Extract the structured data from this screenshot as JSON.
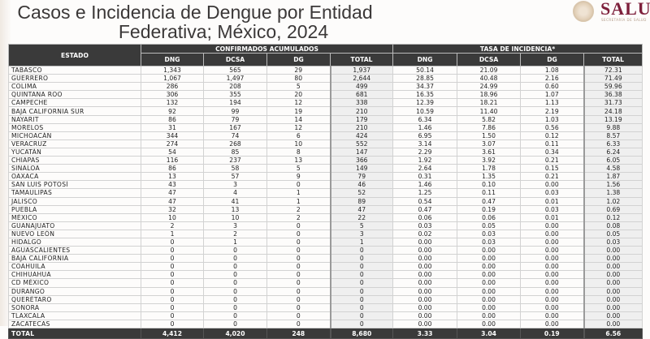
{
  "title": {
    "line1": "Casos e Incidencia de Dengue por Entidad",
    "line2": "Federativa; México, 2024"
  },
  "logo": {
    "text": "SALUD",
    "subtitle": "SECRETARÍA DE SALUD",
    "color": "#7d1f3b"
  },
  "table": {
    "estado_header": "ESTADO",
    "group1": "CONFIRMADOS ACUMULADOS",
    "group2": "TASA DE INCIDENCIA*",
    "columns": [
      "DNG",
      "DCSA",
      "DG",
      "TOTAL",
      "DNG",
      "DCSA",
      "DG",
      "TOTAL"
    ],
    "rows": [
      [
        "TABASCO",
        "1,343",
        "565",
        "29",
        "1,937",
        "50.14",
        "21.09",
        "1.08",
        "72.31"
      ],
      [
        "GUERRERO",
        "1,067",
        "1,497",
        "80",
        "2,644",
        "28.85",
        "40.48",
        "2.16",
        "71.49"
      ],
      [
        "COLIMA",
        "286",
        "208",
        "5",
        "499",
        "34.37",
        "24.99",
        "0.60",
        "59.96"
      ],
      [
        "QUINTANA ROO",
        "306",
        "355",
        "20",
        "681",
        "16.35",
        "18.96",
        "1.07",
        "36.38"
      ],
      [
        "CAMPECHE",
        "132",
        "194",
        "12",
        "338",
        "12.39",
        "18.21",
        "1.13",
        "31.73"
      ],
      [
        "BAJA CALIFORNIA SUR",
        "92",
        "99",
        "19",
        "210",
        "10.59",
        "11.40",
        "2.19",
        "24.18"
      ],
      [
        "NAYARIT",
        "86",
        "79",
        "14",
        "179",
        "6.34",
        "5.82",
        "1.03",
        "13.19"
      ],
      [
        "MORELOS",
        "31",
        "167",
        "12",
        "210",
        "1.46",
        "7.86",
        "0.56",
        "9.88"
      ],
      [
        "MICHOACÁN",
        "344",
        "74",
        "6",
        "424",
        "6.95",
        "1.50",
        "0.12",
        "8.57"
      ],
      [
        "VERACRUZ",
        "274",
        "268",
        "10",
        "552",
        "3.14",
        "3.07",
        "0.11",
        "6.33"
      ],
      [
        "YUCATÁN",
        "54",
        "85",
        "8",
        "147",
        "2.29",
        "3.61",
        "0.34",
        "6.24"
      ],
      [
        "CHIAPAS",
        "116",
        "237",
        "13",
        "366",
        "1.92",
        "3.92",
        "0.21",
        "6.05"
      ],
      [
        "SINALOA",
        "86",
        "58",
        "5",
        "149",
        "2.64",
        "1.78",
        "0.15",
        "4.58"
      ],
      [
        "OAXACA",
        "13",
        "57",
        "9",
        "79",
        "0.31",
        "1.35",
        "0.21",
        "1.87"
      ],
      [
        "SAN LUIS POTOSÍ",
        "43",
        "3",
        "0",
        "46",
        "1.46",
        "0.10",
        "0.00",
        "1.56"
      ],
      [
        "TAMAULIPAS",
        "47",
        "4",
        "1",
        "52",
        "1.25",
        "0.11",
        "0.03",
        "1.38"
      ],
      [
        "JALISCO",
        "47",
        "41",
        "1",
        "89",
        "0.54",
        "0.47",
        "0.01",
        "1.02"
      ],
      [
        "PUEBLA",
        "32",
        "13",
        "2",
        "47",
        "0.47",
        "0.19",
        "0.03",
        "0.69"
      ],
      [
        "MÉXICO",
        "10",
        "10",
        "2",
        "22",
        "0.06",
        "0.06",
        "0.01",
        "0.12"
      ],
      [
        "GUANAJUATO",
        "2",
        "3",
        "0",
        "5",
        "0.03",
        "0.05",
        "0.00",
        "0.08"
      ],
      [
        "NUEVO LEÓN",
        "1",
        "2",
        "0",
        "3",
        "0.02",
        "0.03",
        "0.00",
        "0.05"
      ],
      [
        "HIDALGO",
        "0",
        "1",
        "0",
        "1",
        "0.00",
        "0.03",
        "0.00",
        "0.03"
      ],
      [
        "AGUASCALIENTES",
        "0",
        "0",
        "0",
        "0",
        "0.00",
        "0.00",
        "0.00",
        "0.00"
      ],
      [
        "BAJA CALIFORNIA",
        "0",
        "0",
        "0",
        "0",
        "0.00",
        "0.00",
        "0.00",
        "0.00"
      ],
      [
        "COAHUILA",
        "0",
        "0",
        "0",
        "0",
        "0.00",
        "0.00",
        "0.00",
        "0.00"
      ],
      [
        "CHIHUAHUA",
        "0",
        "0",
        "0",
        "0",
        "0.00",
        "0.00",
        "0.00",
        "0.00"
      ],
      [
        "CD MÉXICO",
        "0",
        "0",
        "0",
        "0",
        "0.00",
        "0.00",
        "0.00",
        "0.00"
      ],
      [
        "DURANGO",
        "0",
        "0",
        "0",
        "0",
        "0.00",
        "0.00",
        "0.00",
        "0.00"
      ],
      [
        "QUERÉTARO",
        "0",
        "0",
        "0",
        "0",
        "0.00",
        "0.00",
        "0.00",
        "0.00"
      ],
      [
        "SONORA",
        "0",
        "0",
        "0",
        "0",
        "0.00",
        "0.00",
        "0.00",
        "0.00"
      ],
      [
        "TLAXCALA",
        "0",
        "0",
        "0",
        "0",
        "0.00",
        "0.00",
        "0.00",
        "0.00"
      ],
      [
        "ZACATECAS",
        "0",
        "0",
        "0",
        "0",
        "0.00",
        "0.00",
        "0.00",
        "0.00"
      ]
    ],
    "total": [
      "TOTAL",
      "4,412",
      "4,020",
      "248",
      "8,680",
      "3.33",
      "3.04",
      "0.19",
      "6.56"
    ]
  }
}
